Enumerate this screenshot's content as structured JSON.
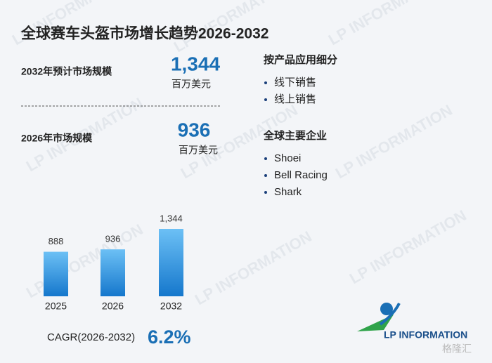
{
  "title": "全球赛车头盔市场增长趋势2026-2032",
  "stats": [
    {
      "label": "2032年预计市场规模",
      "value": "1,344",
      "unit": "百万美元"
    },
    {
      "label": "2026年市场规模",
      "value": "936",
      "unit": "百万美元"
    }
  ],
  "segments": {
    "title": "按产品应用细分",
    "items": [
      "线下销售",
      "线上销售"
    ]
  },
  "companies": {
    "title": "全球主要企业",
    "items": [
      "Shoei",
      "Bell Racing",
      "Shark"
    ]
  },
  "chart_data": {
    "type": "bar",
    "categories": [
      "2025",
      "2026",
      "2032"
    ],
    "values": [
      888,
      936,
      1344
    ],
    "value_labels": [
      "888",
      "936",
      "1,344"
    ],
    "color": "#2a8ee0"
  },
  "cagr": {
    "label": "CAGR(2026-2032)",
    "value": "6.2%"
  },
  "logo": "LP INFORMATION",
  "watermark": "LP INFORMATION",
  "source_mark": "格隆汇"
}
